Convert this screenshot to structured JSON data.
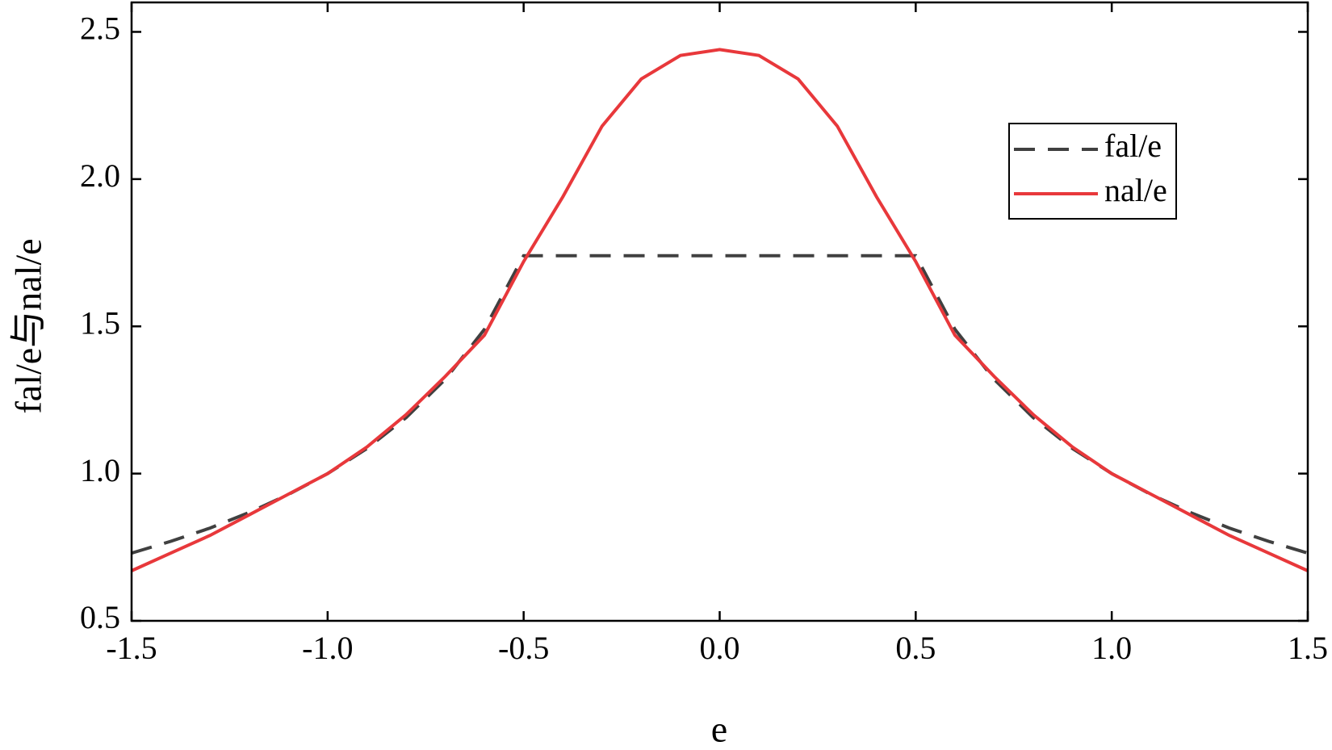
{
  "chart_data": {
    "type": "line",
    "x_label": "e",
    "y_label": "fal/e与nal/e",
    "x": [
      -1.5,
      -1.4,
      -1.3,
      -1.2,
      -1.1,
      -1.0,
      -0.9,
      -0.8,
      -0.7,
      -0.6,
      -0.5,
      -0.4,
      -0.3,
      -0.2,
      -0.1,
      0.0,
      0.1,
      0.2,
      0.3,
      0.4,
      0.5,
      0.6,
      0.7,
      0.8,
      0.9,
      1.0,
      1.1,
      1.2,
      1.3,
      1.4,
      1.5
    ],
    "series": [
      {
        "name": "fal/e",
        "color": "#404040",
        "dash": true,
        "values": [
          0.73,
          0.77,
          0.815,
          0.868,
          0.929,
          1.0,
          1.085,
          1.19,
          1.32,
          1.49,
          1.74,
          1.74,
          1.74,
          1.74,
          1.74,
          1.74,
          1.74,
          1.74,
          1.74,
          1.74,
          1.74,
          1.49,
          1.32,
          1.19,
          1.085,
          1.0,
          0.929,
          0.868,
          0.815,
          0.77,
          0.73
        ]
      },
      {
        "name": "nal/e",
        "color": "#e8383b",
        "dash": false,
        "values": [
          0.67,
          0.73,
          0.79,
          0.86,
          0.93,
          1.0,
          1.09,
          1.2,
          1.33,
          1.47,
          1.72,
          1.94,
          2.18,
          2.34,
          2.42,
          2.44,
          2.42,
          2.34,
          2.18,
          1.94,
          1.72,
          1.47,
          1.33,
          1.2,
          1.09,
          1.0,
          0.93,
          0.86,
          0.79,
          0.73,
          0.67
        ]
      }
    ],
    "xlim": [
      -1.5,
      1.5
    ],
    "ylim": [
      0.5,
      2.6
    ],
    "xticks": [
      {
        "value": -1.5,
        "label": "-1.5"
      },
      {
        "value": -1.0,
        "label": "-1.0"
      },
      {
        "value": -0.5,
        "label": "-0.5"
      },
      {
        "value": 0.0,
        "label": "0.0"
      },
      {
        "value": 0.5,
        "label": "0.5"
      },
      {
        "value": 1.0,
        "label": "1.0"
      },
      {
        "value": 1.5,
        "label": "1.5"
      }
    ],
    "yticks": [
      {
        "value": 0.5,
        "label": "0.5"
      },
      {
        "value": 1.0,
        "label": "1.0"
      },
      {
        "value": 1.5,
        "label": "1.5"
      },
      {
        "value": 2.0,
        "label": "2.0"
      },
      {
        "value": 2.5,
        "label": "2.5"
      }
    ],
    "grid": false,
    "legend": "upper right"
  }
}
